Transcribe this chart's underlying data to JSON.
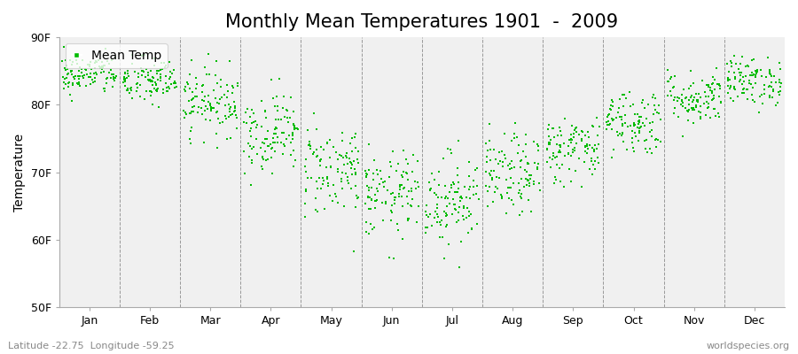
{
  "title": "Monthly Mean Temperatures 1901  -  2009",
  "ylabel": "Temperature",
  "xlabel_labels": [
    "Jan",
    "Feb",
    "Mar",
    "Apr",
    "May",
    "Jun",
    "Jul",
    "Aug",
    "Sep",
    "Oct",
    "Nov",
    "Dec"
  ],
  "footer_left": "Latitude -22.75  Longitude -59.25",
  "footer_right": "worldspecies.org",
  "legend_label": "Mean Temp",
  "ylim": [
    50,
    90
  ],
  "yticks": [
    50,
    60,
    70,
    80,
    90
  ],
  "ytick_labels": [
    "50F",
    "60F",
    "70F",
    "80F",
    "90F"
  ],
  "marker_color": "#00bb00",
  "figure_bg_color": "#ffffff",
  "plot_bg_color": "#f0f0f0",
  "monthly_means": [
    84.5,
    83.5,
    80.5,
    76.0,
    70.5,
    66.5,
    66.0,
    69.5,
    73.5,
    77.5,
    81.0,
    83.5
  ],
  "monthly_stds": [
    1.5,
    1.8,
    2.5,
    3.0,
    3.5,
    3.2,
    3.5,
    3.0,
    2.5,
    2.5,
    2.0,
    1.8
  ],
  "n_years": 109,
  "seed": 42,
  "title_fontsize": 15,
  "axis_fontsize": 10,
  "tick_fontsize": 9,
  "footer_fontsize": 8,
  "marker_size": 3,
  "dashed_line_color": "#999999",
  "spine_color": "#aaaaaa"
}
